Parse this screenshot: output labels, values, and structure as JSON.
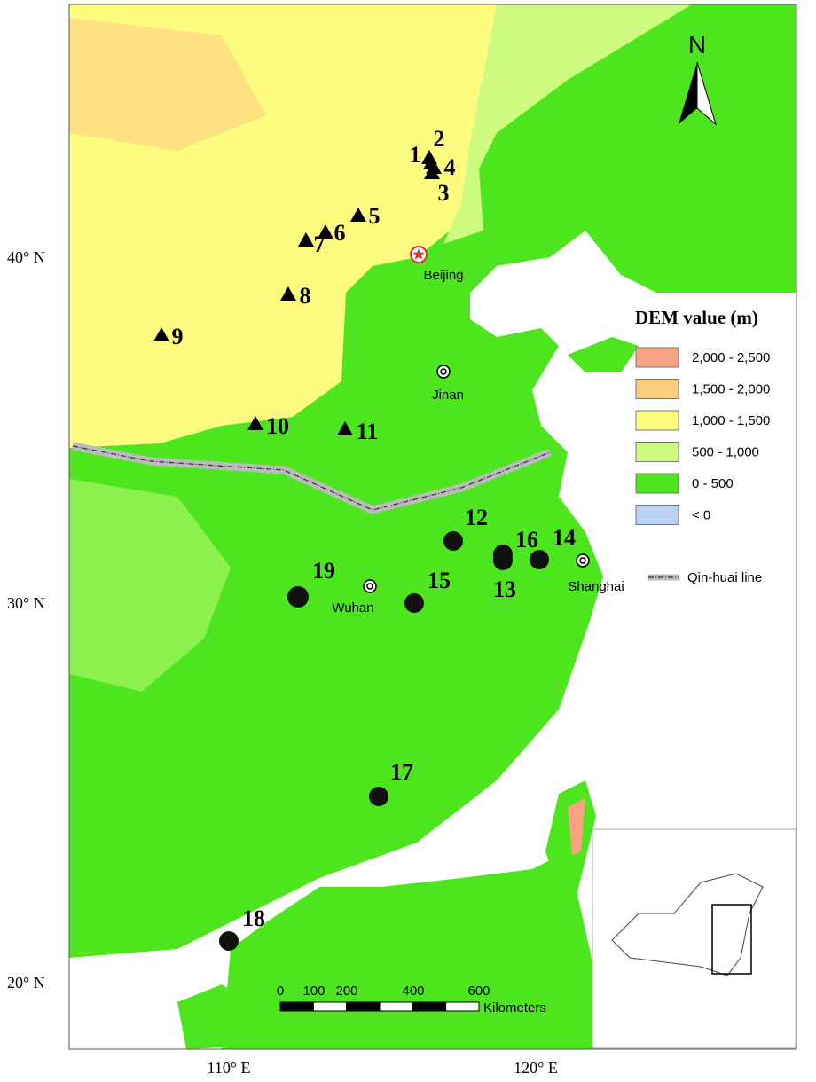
{
  "axes": {
    "lat_labels": [
      "40° N",
      "30° N",
      "20° N"
    ],
    "lon_labels": [
      "110° E",
      "120° E"
    ]
  },
  "north_arrow": "N",
  "sites": [
    "1",
    "2",
    "3",
    "4",
    "5",
    "6",
    "7",
    "8",
    "9",
    "10",
    "11",
    "12",
    "13",
    "14",
    "15",
    "16",
    "17",
    "18",
    "19"
  ],
  "cities": [
    "Beijing",
    "Jinan",
    "Wuhan",
    "Shanghai"
  ],
  "legend": {
    "title": "DEM value (m)",
    "items": [
      {
        "label": "2,000 - 2,500",
        "color": "#f9a27f"
      },
      {
        "label": "1,500 - 2,000",
        "color": "#fdcd7f"
      },
      {
        "label": "1,000 - 1,500",
        "color": "#fdfc7f"
      },
      {
        "label": "500 - 1,000",
        "color": "#ccfb7f"
      },
      {
        "label": "0 - 500",
        "color": "#4ce51e"
      },
      {
        "label": "< 0",
        "color": "#bcd2f2"
      }
    ],
    "line": "Qin-huai line"
  },
  "scale_bar": {
    "ticks": [
      "0",
      "100",
      "200",
      "400",
      "600"
    ],
    "unit": "Kilometers"
  }
}
